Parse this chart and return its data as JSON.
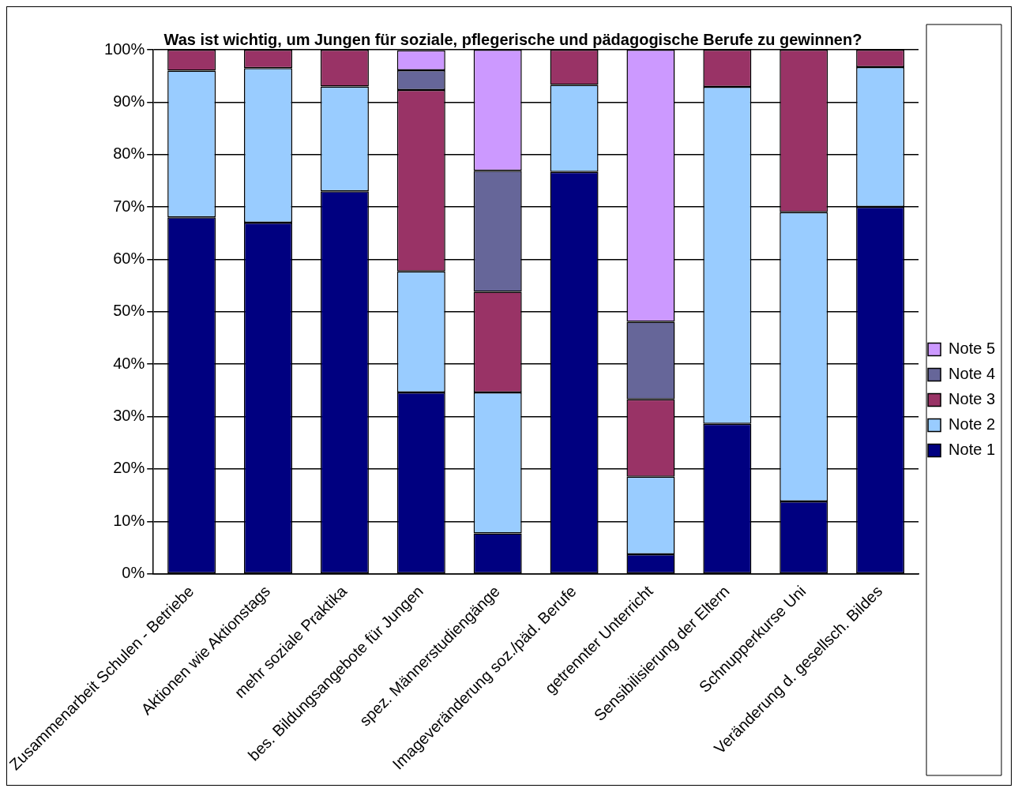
{
  "chart_data": {
    "type": "bar",
    "stacked": true,
    "title": "Was ist wichtig, um Jungen für soziale, pflegerische und pädagogische Berufe zu gewinnen?",
    "categories": [
      "Zusammenarbeit Schulen - Betriebe",
      "Aktionen wie Aktionstags",
      "mehr soziale Praktika",
      "bes. Bildungsangebote für Jungen",
      "spez. Männerstudiengänge",
      "Imageveränderung soz./päd. Berufe",
      "getrennter Unterricht",
      "Sensibilisierung der Eltern",
      "Schnupperkurse Uni",
      "Veränderung d. gesellsch. Bildes"
    ],
    "series": [
      {
        "name": "Note 1",
        "color": "#000080",
        "values": [
          68,
          67,
          73,
          34.6,
          7.7,
          76.7,
          3.7,
          28.6,
          13.8,
          70
        ]
      },
      {
        "name": "Note 2",
        "color": "#99ccff",
        "values": [
          28,
          29.5,
          20,
          23.1,
          26.9,
          16.6,
          14.8,
          64.3,
          55.2,
          26.7
        ]
      },
      {
        "name": "Note 3",
        "color": "#993366",
        "values": [
          4,
          3.5,
          7,
          34.6,
          19.2,
          6.7,
          14.8,
          7.1,
          31,
          3.3
        ]
      },
      {
        "name": "Note 4",
        "color": "#666699",
        "values": [
          0,
          0,
          0,
          3.8,
          23.1,
          0,
          14.8,
          0,
          0,
          0
        ]
      },
      {
        "name": "Note 5",
        "color": "#cc99ff",
        "values": [
          0,
          0,
          0,
          3.8,
          23.1,
          0,
          51.9,
          0,
          0,
          0
        ]
      }
    ],
    "ylim": [
      0,
      100
    ],
    "yticks": [
      {
        "value": 0,
        "label": "0%"
      },
      {
        "value": 10,
        "label": "10%"
      },
      {
        "value": 20,
        "label": "20%"
      },
      {
        "value": 30,
        "label": "30%"
      },
      {
        "value": 40,
        "label": "40%"
      },
      {
        "value": 50,
        "label": "50%"
      },
      {
        "value": 60,
        "label": "60%"
      },
      {
        "value": 70,
        "label": "70%"
      },
      {
        "value": 80,
        "label": "80%"
      },
      {
        "value": 90,
        "label": "90%"
      },
      {
        "value": 100,
        "label": "100%"
      }
    ],
    "grid": "y",
    "legend": "right"
  }
}
